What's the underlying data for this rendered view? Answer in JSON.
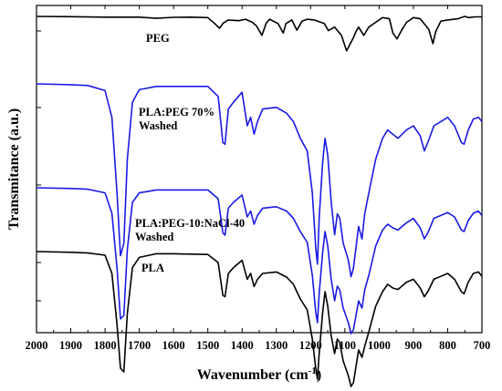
{
  "chart_data": {
    "type": "line",
    "xlabel": "Wavenumber (cm",
    "xlabel_sup": "-1",
    "xlabel_end": ")",
    "ylabel": "Transmitance (a.u.)",
    "xlim": [
      2000,
      700
    ],
    "x_reversed": true,
    "x_ticks": [
      2000,
      1900,
      1800,
      1700,
      1600,
      1500,
      1400,
      1300,
      1200,
      1100,
      1000,
      900,
      800,
      700
    ],
    "y_ticks_labeled": false,
    "grid": false,
    "series": [
      {
        "name": "PEG",
        "label_lines": [
          "PEG"
        ],
        "color": "#000000",
        "points": [
          [
            2000,
            1.0
          ],
          [
            1900,
            0.99
          ],
          [
            1800,
            0.97
          ],
          [
            1700,
            0.97
          ],
          [
            1650,
            0.92
          ],
          [
            1600,
            0.96
          ],
          [
            1550,
            0.97
          ],
          [
            1500,
            0.95
          ],
          [
            1480,
            0.7
          ],
          [
            1466,
            0.5
          ],
          [
            1455,
            0.72
          ],
          [
            1440,
            0.85
          ],
          [
            1410,
            0.82
          ],
          [
            1390,
            0.88
          ],
          [
            1370,
            0.75
          ],
          [
            1358,
            0.6
          ],
          [
            1342,
            0.2
          ],
          [
            1330,
            0.7
          ],
          [
            1320,
            0.88
          ],
          [
            1295,
            0.7
          ],
          [
            1280,
            0.3
          ],
          [
            1272,
            0.7
          ],
          [
            1255,
            0.85
          ],
          [
            1240,
            0.42
          ],
          [
            1225,
            0.8
          ],
          [
            1210,
            0.88
          ],
          [
            1190,
            0.85
          ],
          [
            1160,
            0.7
          ],
          [
            1148,
            0.4
          ],
          [
            1130,
            0.55
          ],
          [
            1110,
            0.2
          ],
          [
            1095,
            -0.45
          ],
          [
            1075,
            0.1
          ],
          [
            1068,
            0.35
          ],
          [
            1060,
            0.55
          ],
          [
            1045,
            0.2
          ],
          [
            1030,
            0.55
          ],
          [
            1010,
            0.75
          ],
          [
            990,
            0.95
          ],
          [
            970,
            0.9
          ],
          [
            960,
            0.3
          ],
          [
            948,
            0.05
          ],
          [
            935,
            0.4
          ],
          [
            920,
            0.75
          ],
          [
            900,
            0.95
          ],
          [
            880,
            0.9
          ],
          [
            855,
            0.45
          ],
          [
            843,
            -0.15
          ],
          [
            835,
            0.35
          ],
          [
            820,
            0.8
          ],
          [
            800,
            0.85
          ],
          [
            770,
            0.9
          ],
          [
            760,
            0.95
          ],
          [
            750,
            1.0
          ],
          [
            740,
            0.95
          ],
          [
            720,
            0.98
          ],
          [
            700,
            0.98
          ]
        ]
      },
      {
        "name": "PLA:PEG 70% Washed",
        "label_lines": [
          "PLA:PEG 70%",
          "Washed"
        ],
        "color": "#1a1ae6",
        "points": [
          [
            2000,
            1.0
          ],
          [
            1900,
            0.99
          ],
          [
            1850,
            0.98
          ],
          [
            1800,
            0.92
          ],
          [
            1780,
            0.6
          ],
          [
            1765,
            -0.3
          ],
          [
            1755,
            -1.05
          ],
          [
            1745,
            -0.9
          ],
          [
            1735,
            0.1
          ],
          [
            1720,
            0.78
          ],
          [
            1700,
            0.93
          ],
          [
            1650,
            0.97
          ],
          [
            1600,
            0.97
          ],
          [
            1500,
            0.97
          ],
          [
            1470,
            0.85
          ],
          [
            1456,
            0.3
          ],
          [
            1450,
            0.28
          ],
          [
            1440,
            0.7
          ],
          [
            1425,
            0.78
          ],
          [
            1400,
            0.9
          ],
          [
            1385,
            0.5
          ],
          [
            1375,
            0.6
          ],
          [
            1365,
            0.4
          ],
          [
            1355,
            0.55
          ],
          [
            1340,
            0.7
          ],
          [
            1300,
            0.72
          ],
          [
            1270,
            0.65
          ],
          [
            1250,
            0.55
          ],
          [
            1230,
            0.35
          ],
          [
            1210,
            0.2
          ],
          [
            1195,
            -0.3
          ],
          [
            1185,
            -0.95
          ],
          [
            1180,
            -1.15
          ],
          [
            1175,
            -0.6
          ],
          [
            1165,
            0.05
          ],
          [
            1158,
            0.35
          ],
          [
            1150,
            0.15
          ],
          [
            1140,
            -0.4
          ],
          [
            1130,
            -0.8
          ],
          [
            1122,
            -0.55
          ],
          [
            1115,
            -0.6
          ],
          [
            1105,
            -0.9
          ],
          [
            1090,
            -1.1
          ],
          [
            1082,
            -1.3
          ],
          [
            1075,
            -1.2
          ],
          [
            1060,
            -0.7
          ],
          [
            1050,
            -0.85
          ],
          [
            1042,
            -0.55
          ],
          [
            1030,
            -0.3
          ],
          [
            1010,
            0.1
          ],
          [
            990,
            0.35
          ],
          [
            975,
            0.45
          ],
          [
            960,
            0.4
          ],
          [
            945,
            0.35
          ],
          [
            920,
            0.45
          ],
          [
            900,
            0.5
          ],
          [
            880,
            0.38
          ],
          [
            868,
            0.2
          ],
          [
            858,
            0.3
          ],
          [
            840,
            0.5
          ],
          [
            820,
            0.55
          ],
          [
            800,
            0.6
          ],
          [
            780,
            0.5
          ],
          [
            760,
            0.3
          ],
          [
            752,
            0.28
          ],
          [
            740,
            0.45
          ],
          [
            725,
            0.58
          ],
          [
            710,
            0.6
          ],
          [
            700,
            0.55
          ]
        ]
      },
      {
        "name": "PLA:PEG-10:NaCl-40 Washed",
        "label_lines": [
          "PLA:PEG-10:NaCl-40",
          "Washed"
        ],
        "color": "#1a1ae6",
        "points": [
          [
            2000,
            1.0
          ],
          [
            1900,
            0.99
          ],
          [
            1850,
            0.98
          ],
          [
            1800,
            0.93
          ],
          [
            1780,
            0.65
          ],
          [
            1765,
            -0.1
          ],
          [
            1755,
            -0.8
          ],
          [
            1745,
            -0.75
          ],
          [
            1735,
            0.15
          ],
          [
            1720,
            0.8
          ],
          [
            1700,
            0.93
          ],
          [
            1650,
            0.97
          ],
          [
            1600,
            0.97
          ],
          [
            1500,
            0.97
          ],
          [
            1470,
            0.85
          ],
          [
            1456,
            0.38
          ],
          [
            1450,
            0.35
          ],
          [
            1440,
            0.72
          ],
          [
            1425,
            0.8
          ],
          [
            1400,
            0.9
          ],
          [
            1385,
            0.6
          ],
          [
            1375,
            0.68
          ],
          [
            1365,
            0.5
          ],
          [
            1355,
            0.62
          ],
          [
            1340,
            0.72
          ],
          [
            1300,
            0.74
          ],
          [
            1270,
            0.68
          ],
          [
            1250,
            0.58
          ],
          [
            1230,
            0.4
          ],
          [
            1210,
            0.25
          ],
          [
            1195,
            -0.2
          ],
          [
            1185,
            -0.7
          ],
          [
            1180,
            -0.85
          ],
          [
            1175,
            -0.45
          ],
          [
            1165,
            0.1
          ],
          [
            1158,
            0.4
          ],
          [
            1150,
            0.2
          ],
          [
            1140,
            -0.25
          ],
          [
            1130,
            -0.55
          ],
          [
            1122,
            -0.35
          ],
          [
            1115,
            -0.4
          ],
          [
            1105,
            -0.65
          ],
          [
            1090,
            -0.85
          ],
          [
            1082,
            -1.0
          ],
          [
            1075,
            -0.95
          ],
          [
            1060,
            -0.55
          ],
          [
            1050,
            -0.65
          ],
          [
            1042,
            -0.4
          ],
          [
            1030,
            -0.2
          ],
          [
            1010,
            0.2
          ],
          [
            990,
            0.42
          ],
          [
            975,
            0.5
          ],
          [
            960,
            0.45
          ],
          [
            945,
            0.42
          ],
          [
            920,
            0.52
          ],
          [
            900,
            0.58
          ],
          [
            880,
            0.45
          ],
          [
            868,
            0.3
          ],
          [
            858,
            0.38
          ],
          [
            840,
            0.58
          ],
          [
            820,
            0.62
          ],
          [
            800,
            0.66
          ],
          [
            780,
            0.6
          ],
          [
            760,
            0.42
          ],
          [
            752,
            0.4
          ],
          [
            740,
            0.55
          ],
          [
            725,
            0.65
          ],
          [
            710,
            0.68
          ],
          [
            700,
            0.62
          ]
        ]
      },
      {
        "name": "PLA",
        "label_lines": [
          "PLA"
        ],
        "color": "#000000",
        "points": [
          [
            2000,
            1.0
          ],
          [
            1900,
            0.99
          ],
          [
            1850,
            0.98
          ],
          [
            1800,
            0.95
          ],
          [
            1780,
            0.7
          ],
          [
            1765,
            0.0
          ],
          [
            1755,
            -0.6
          ],
          [
            1745,
            -0.65
          ],
          [
            1735,
            0.15
          ],
          [
            1720,
            0.78
          ],
          [
            1700,
            0.92
          ],
          [
            1650,
            0.97
          ],
          [
            1600,
            0.97
          ],
          [
            1500,
            0.96
          ],
          [
            1470,
            0.85
          ],
          [
            1456,
            0.4
          ],
          [
            1450,
            0.38
          ],
          [
            1440,
            0.7
          ],
          [
            1425,
            0.78
          ],
          [
            1400,
            0.88
          ],
          [
            1385,
            0.62
          ],
          [
            1375,
            0.7
          ],
          [
            1365,
            0.52
          ],
          [
            1355,
            0.62
          ],
          [
            1340,
            0.7
          ],
          [
            1300,
            0.72
          ],
          [
            1270,
            0.65
          ],
          [
            1250,
            0.55
          ],
          [
            1230,
            0.35
          ],
          [
            1210,
            0.2
          ],
          [
            1195,
            -0.2
          ],
          [
            1185,
            -0.6
          ],
          [
            1180,
            -0.75
          ],
          [
            1175,
            -0.4
          ],
          [
            1165,
            0.15
          ],
          [
            1158,
            0.45
          ],
          [
            1150,
            0.25
          ],
          [
            1140,
            -0.15
          ],
          [
            1130,
            -0.4
          ],
          [
            1122,
            -0.2
          ],
          [
            1115,
            -0.25
          ],
          [
            1105,
            -0.5
          ],
          [
            1090,
            -0.7
          ],
          [
            1082,
            -0.85
          ],
          [
            1075,
            -0.8
          ],
          [
            1060,
            -0.35
          ],
          [
            1050,
            -0.45
          ],
          [
            1042,
            -0.3
          ],
          [
            1030,
            -0.1
          ],
          [
            1010,
            0.25
          ],
          [
            990,
            0.45
          ],
          [
            975,
            0.55
          ],
          [
            960,
            0.5
          ],
          [
            945,
            0.48
          ],
          [
            920,
            0.58
          ],
          [
            900,
            0.62
          ],
          [
            880,
            0.5
          ],
          [
            868,
            0.38
          ],
          [
            858,
            0.45
          ],
          [
            840,
            0.62
          ],
          [
            820,
            0.66
          ],
          [
            800,
            0.7
          ],
          [
            780,
            0.62
          ],
          [
            760,
            0.45
          ],
          [
            752,
            0.42
          ],
          [
            740,
            0.58
          ],
          [
            725,
            0.7
          ],
          [
            710,
            0.72
          ],
          [
            700,
            0.66
          ]
        ]
      }
    ]
  }
}
